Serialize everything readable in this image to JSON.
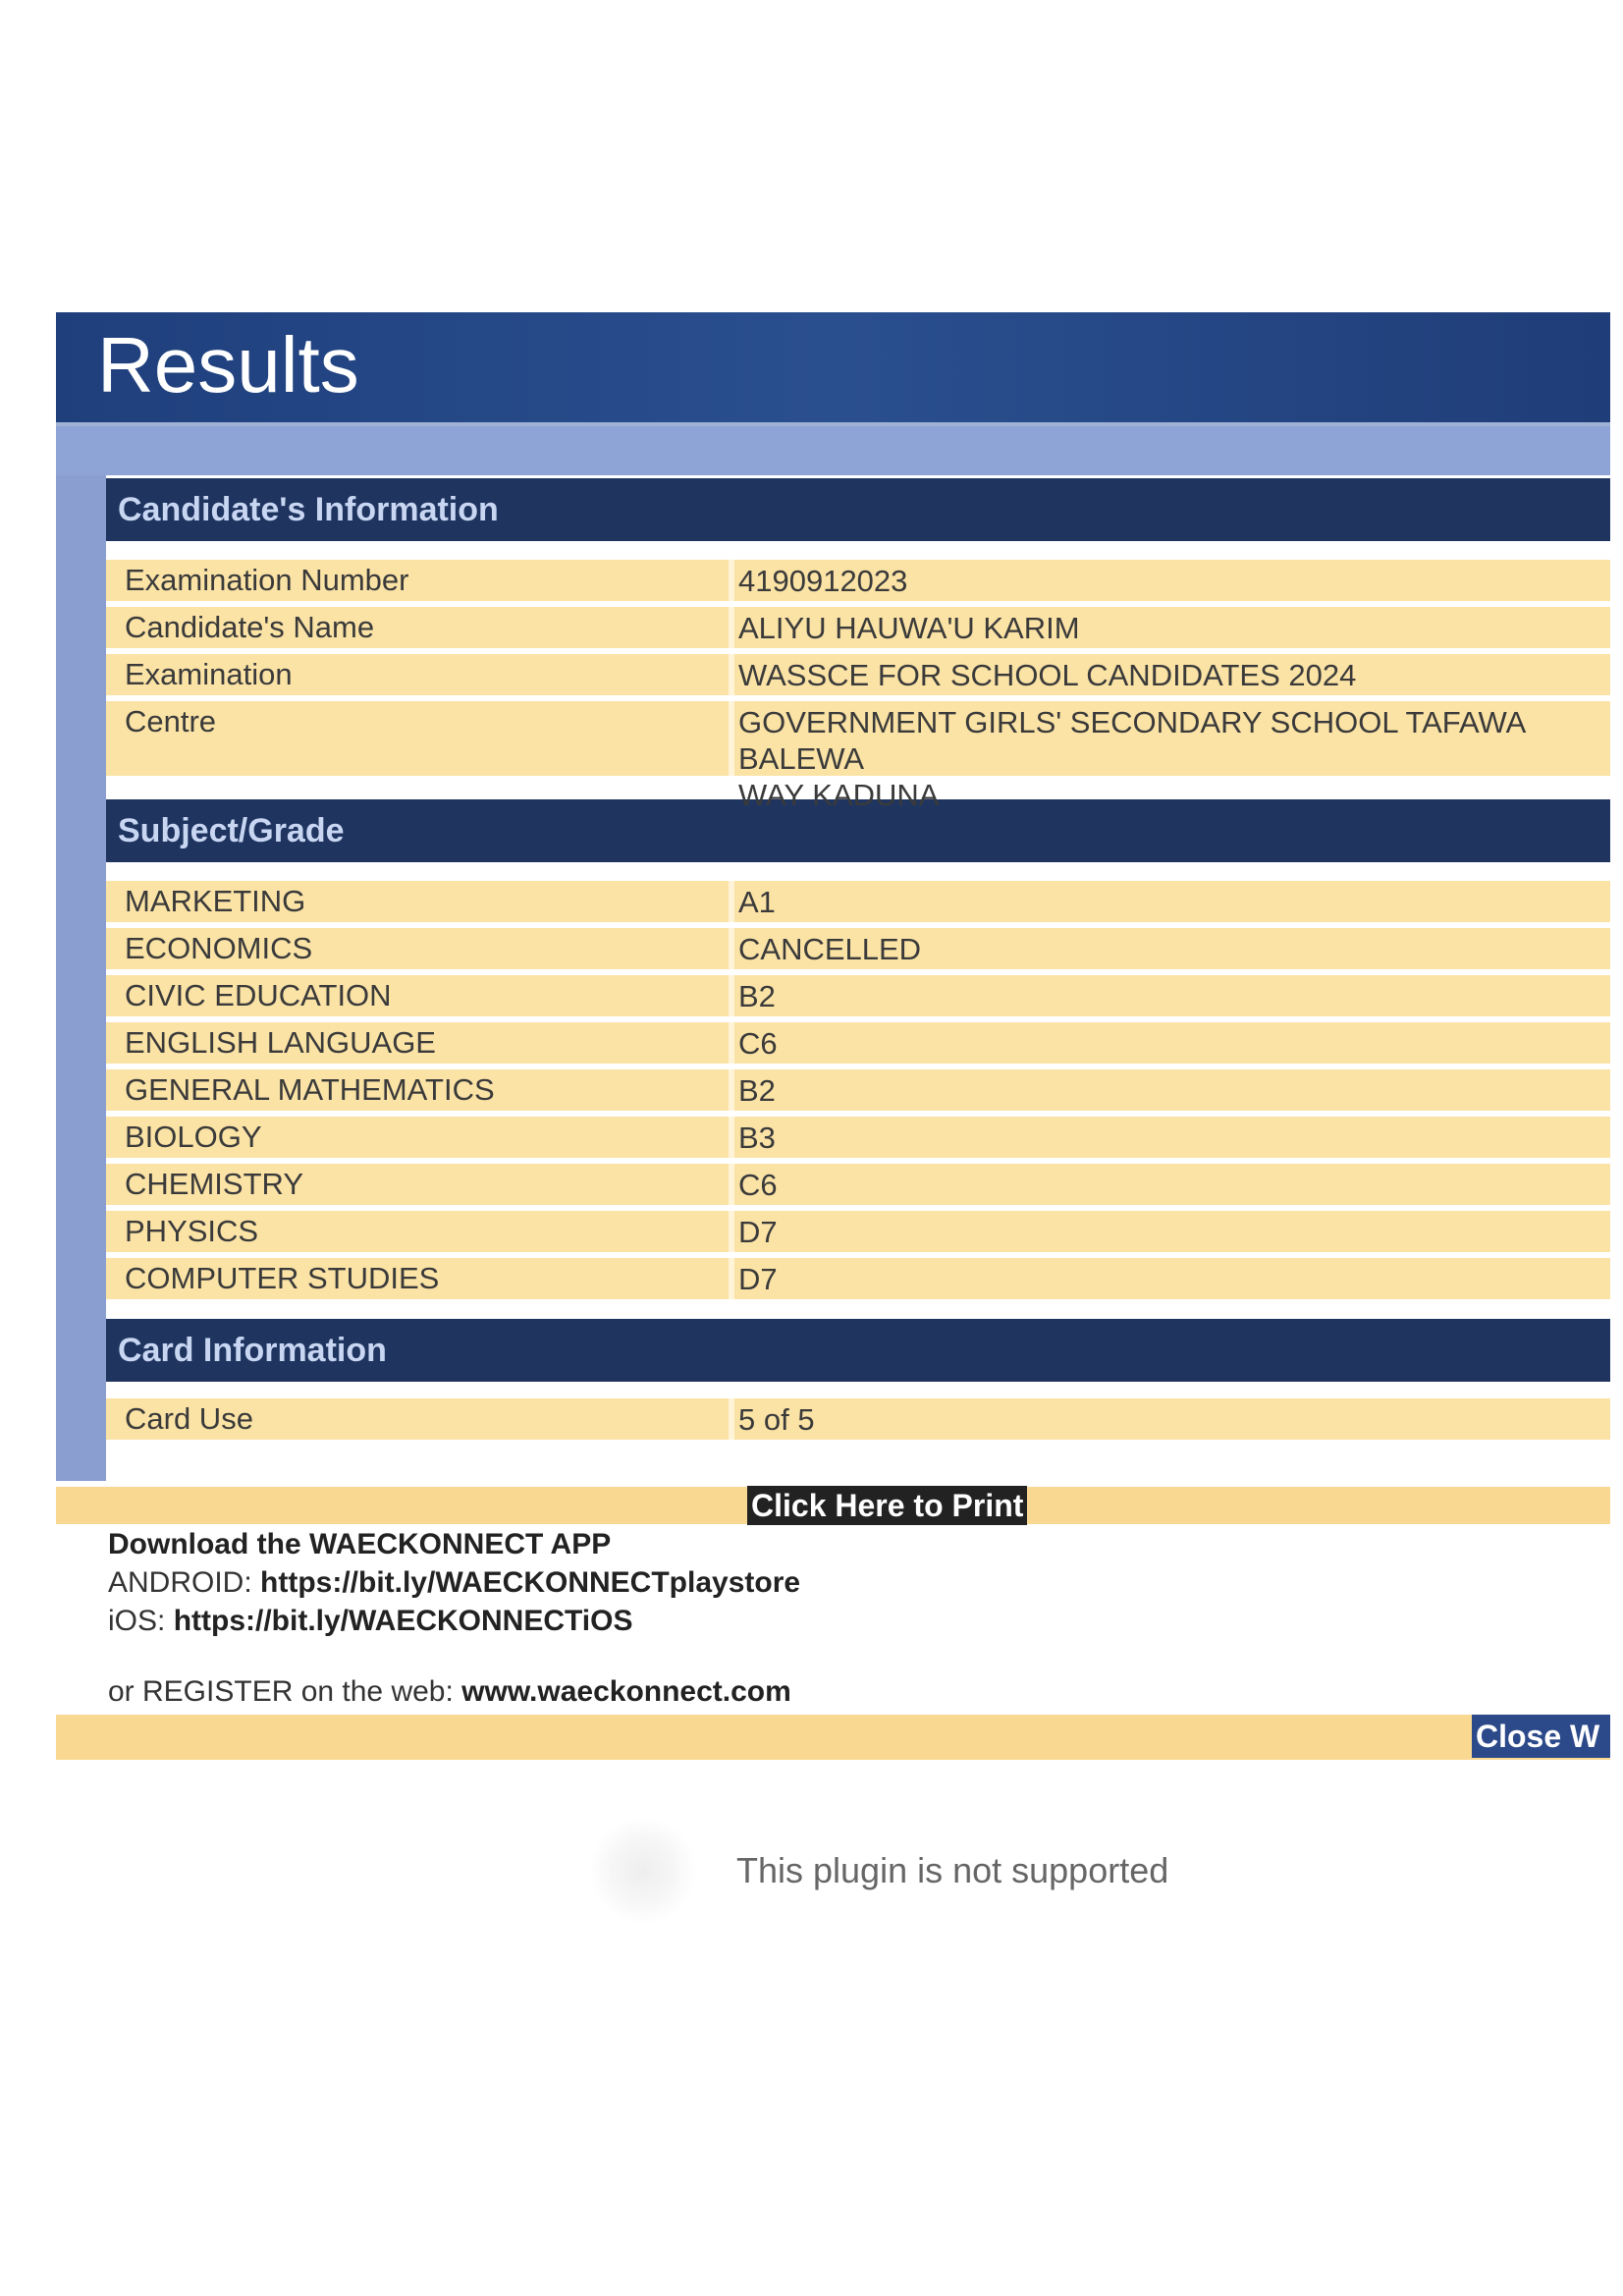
{
  "title": "Results",
  "candidate_section": {
    "heading": "Candidate's Information",
    "rows": [
      {
        "label": "Examination Number",
        "value": "4190912023"
      },
      {
        "label": "Candidate's Name",
        "value": "ALIYU HAUWA'U KARIM"
      },
      {
        "label": "Examination",
        "value": "WASSCE FOR SCHOOL CANDIDATES 2024"
      },
      {
        "label": "Centre",
        "value": "GOVERNMENT GIRLS' SECONDARY SCHOOL TAFAWA BALEWA",
        "value2": "WAY KADUNA"
      }
    ]
  },
  "subject_section": {
    "heading": "Subject/Grade",
    "rows": [
      {
        "label": "MARKETING",
        "value": "A1"
      },
      {
        "label": "ECONOMICS",
        "value": "CANCELLED"
      },
      {
        "label": "CIVIC EDUCATION",
        "value": "B2"
      },
      {
        "label": "ENGLISH LANGUAGE",
        "value": "C6"
      },
      {
        "label": "GENERAL MATHEMATICS",
        "value": "B2"
      },
      {
        "label": "BIOLOGY",
        "value": "B3"
      },
      {
        "label": "CHEMISTRY",
        "value": "C6"
      },
      {
        "label": "PHYSICS",
        "value": "D7"
      },
      {
        "label": "COMPUTER STUDIES",
        "value": "D7"
      }
    ]
  },
  "card_section": {
    "heading": "Card Information",
    "rows": [
      {
        "label": "Card Use",
        "value": "5 of 5"
      }
    ]
  },
  "print_button": "Click Here to Print",
  "download": {
    "heading": "Download the WAECKONNECT APP",
    "android_label": "ANDROID: ",
    "android_link": "https://bit.ly/WAECKONNECTplaystore",
    "ios_label": "iOS: ",
    "ios_link": "https://bit.ly/WAECKONNECTiOS",
    "register_label": "or REGISTER on the web: ",
    "register_link": "www.waeckonnect.com"
  },
  "close_button": "Close W",
  "plugin_message": "This plugin is not supported"
}
